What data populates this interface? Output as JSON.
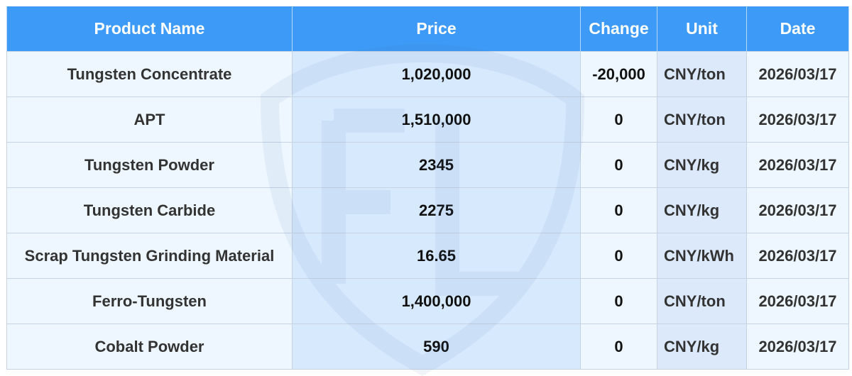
{
  "table": {
    "headers": [
      "Product Name",
      "Price",
      "Change",
      "Unit",
      "Date"
    ],
    "rows": [
      {
        "name": "Tungsten Concentrate",
        "price": "1,020,000",
        "change": "-20,000",
        "unit": "CNY/ton",
        "date": "2026/03/17"
      },
      {
        "name": "APT",
        "price": "1,510,000",
        "change": "0",
        "unit": "CNY/ton",
        "date": "2026/03/17"
      },
      {
        "name": "Tungsten Powder",
        "price": "2345",
        "change": "0",
        "unit": "CNY/kg",
        "date": "2026/03/17"
      },
      {
        "name": "Tungsten Carbide",
        "price": "2275",
        "change": "0",
        "unit": "CNY/kg",
        "date": "2026/03/17"
      },
      {
        "name": "Scrap Tungsten Grinding Material",
        "price": "16.65",
        "change": "0",
        "unit": "CNY/kWh",
        "date": "2026/03/17"
      },
      {
        "name": "Ferro-Tungsten",
        "price": "1,400,000",
        "change": "0",
        "unit": "CNY/ton",
        "date": "2026/03/17"
      },
      {
        "name": "Cobalt Powder",
        "price": "590",
        "change": "0",
        "unit": "CNY/kg",
        "date": "2026/03/17"
      }
    ]
  },
  "colors": {
    "header_bg": "#3d9bf7",
    "header_text": "#ffffff",
    "row_bg": "#eef6ff",
    "price_col_bg": "#d7e9fd",
    "border": "#c6d3e2"
  },
  "watermark": {
    "icon": "shield-logo-icon"
  }
}
